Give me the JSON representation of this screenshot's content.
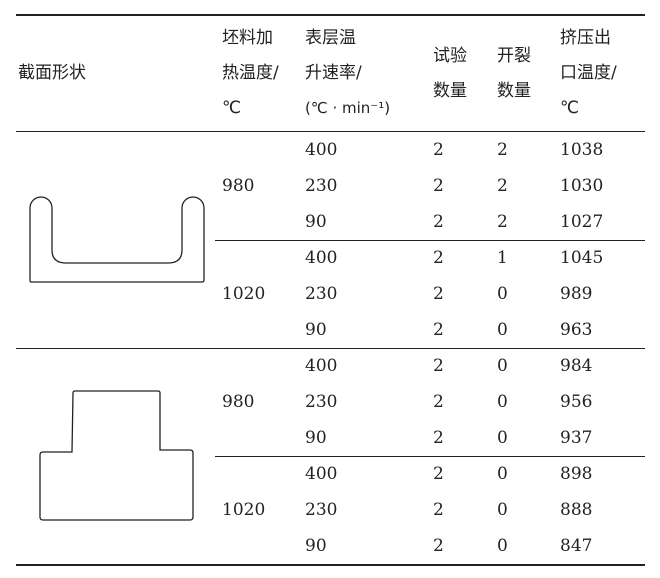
{
  "headers": {
    "shape": "截面形状",
    "billet_temp": [
      "坯料加",
      "热温度/",
      "℃"
    ],
    "heating_rate": [
      "表层温",
      "升速率/",
      "(℃ · min⁻¹)"
    ],
    "test_count": [
      "试验",
      "数量"
    ],
    "crack_count": [
      "开裂",
      "数量"
    ],
    "exit_temp": [
      "挤压出",
      "口温度/",
      "℃"
    ]
  },
  "groups": [
    {
      "shape": "U-channel",
      "billet_temp": "980",
      "rows": [
        [
          "400",
          "2",
          "2",
          "1038"
        ],
        [
          "230",
          "2",
          "2",
          "1030"
        ],
        [
          "90",
          "2",
          "2",
          "1027"
        ]
      ]
    },
    {
      "shape": "U-channel",
      "billet_temp": "1020",
      "rows": [
        [
          "400",
          "2",
          "1",
          "1045"
        ],
        [
          "230",
          "2",
          "0",
          "989"
        ],
        [
          "90",
          "2",
          "0",
          "963"
        ]
      ]
    },
    {
      "shape": "T-section",
      "billet_temp": "980",
      "rows": [
        [
          "400",
          "2",
          "0",
          "984"
        ],
        [
          "230",
          "2",
          "0",
          "956"
        ],
        [
          "90",
          "2",
          "0",
          "937"
        ]
      ]
    },
    {
      "shape": "T-section",
      "billet_temp": "1020",
      "rows": [
        [
          "400",
          "2",
          "0",
          "898"
        ],
        [
          "230",
          "2",
          "0",
          "888"
        ],
        [
          "90",
          "2",
          "0",
          "847"
        ]
      ]
    }
  ]
}
